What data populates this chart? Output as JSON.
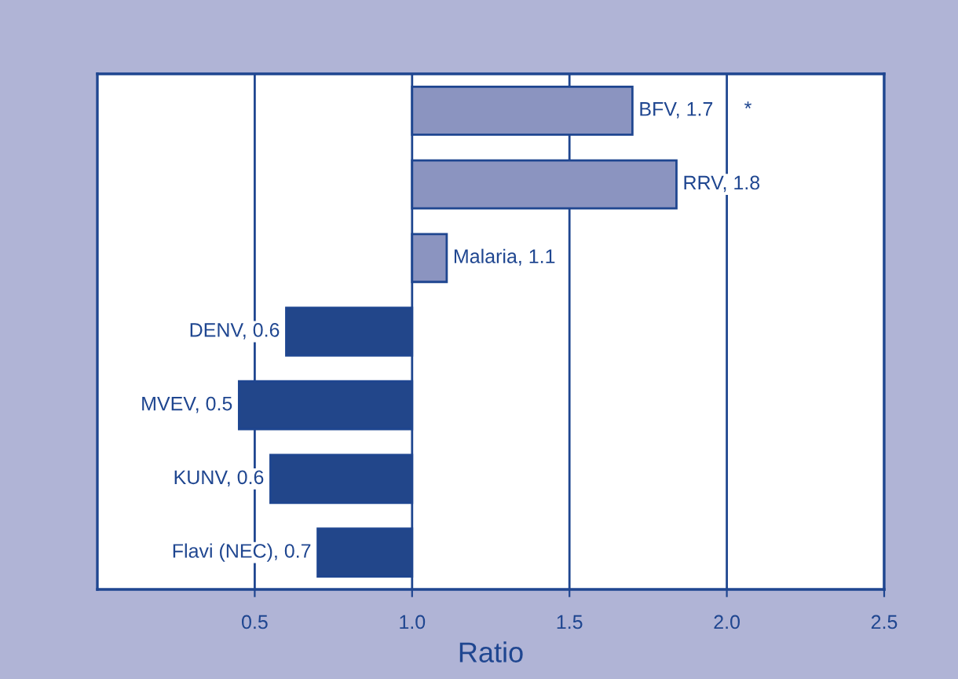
{
  "chart_data": {
    "type": "bar",
    "orientation": "horizontal",
    "xlabel": "Ratio",
    "categories": [
      null,
      null,
      null,
      null,
      null,
      null,
      null
    ],
    "base": [
      1,
      1,
      1,
      1,
      1,
      1,
      1
    ],
    "values": [
      0.7,
      0.84,
      0.11,
      -0.4,
      -0.55,
      -0.45,
      -0.3
    ],
    "value_labels": [
      "BFV, 1.7",
      "RRV, 1.8",
      "Malaria, 1.1",
      "DENV, 0.6",
      "MVEV, 0.5",
      "KUNV, 0.6",
      "Flavi (NEC), 0.7"
    ],
    "colors": [
      "#8b94c0",
      "#8b94c0",
      "#8b94c0",
      "#22468a",
      "#22468a",
      "#22468a",
      "#22468a"
    ],
    "xlim": [
      0,
      2.5
    ],
    "xticks": [
      {
        "value": 0.5,
        "label": "0.5"
      },
      {
        "value": 1,
        "label": "1.0"
      },
      {
        "value": 1.5,
        "label": "1.5"
      },
      {
        "value": 2,
        "label": "2.0"
      },
      {
        "value": 2.5,
        "label": "2.5"
      }
    ],
    "grid": "x",
    "tick_labels": "x",
    "annotations": [
      "*"
    ]
  }
}
